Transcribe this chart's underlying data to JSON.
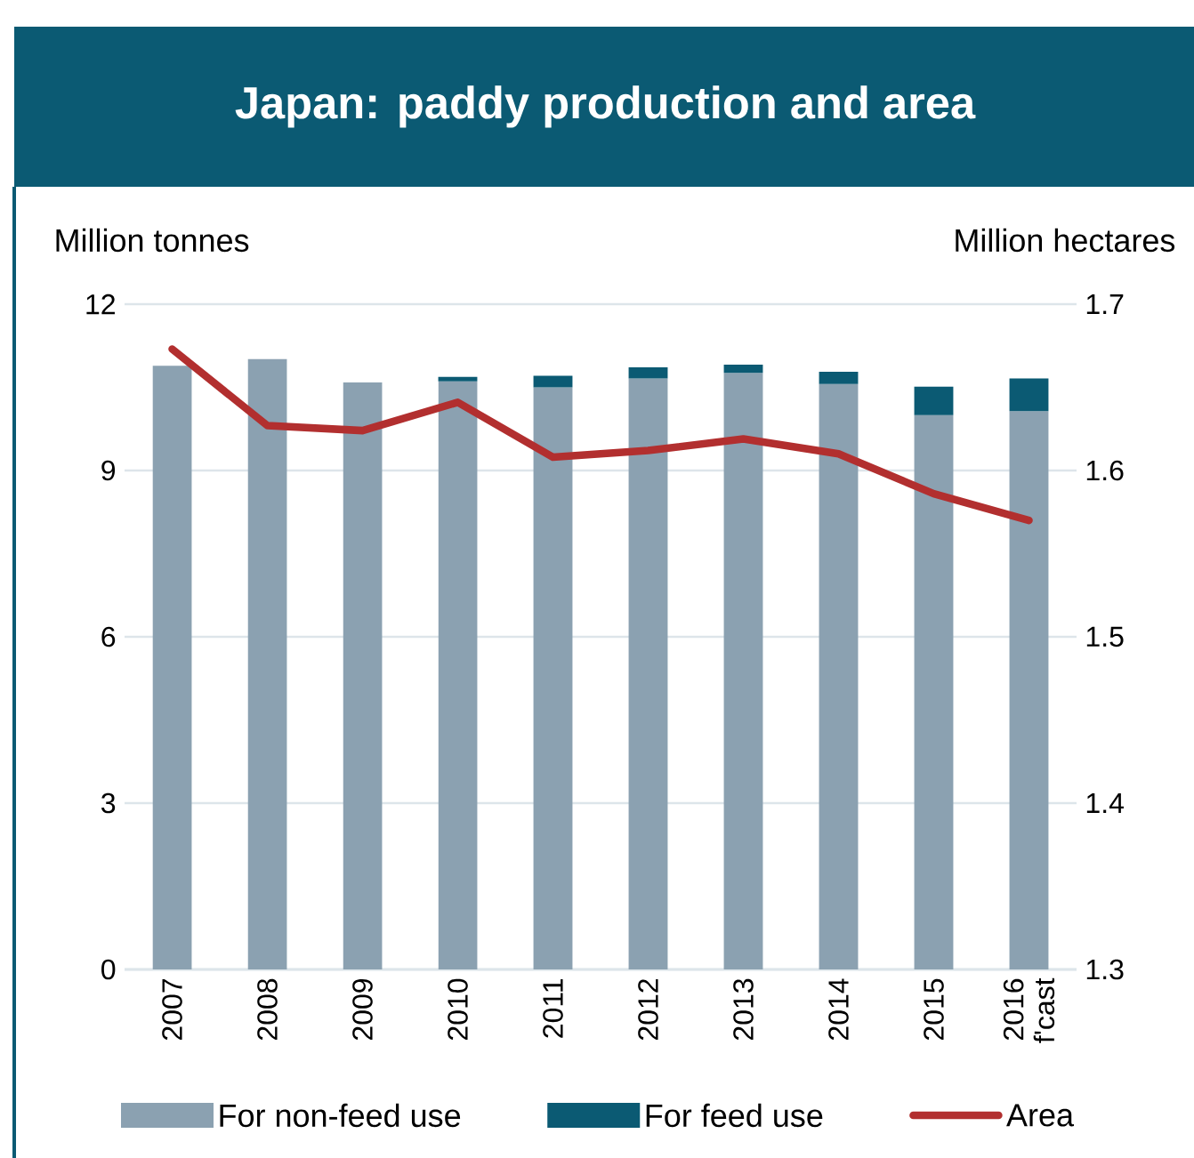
{
  "chart_data": {
    "type": "bar",
    "title": "Japan: paddy production and area",
    "ylabel": "Million tonnes",
    "y2label": "Million hectares",
    "categories": [
      "2007",
      "2008",
      "2009",
      "2010",
      "2011",
      "2012",
      "2013",
      "2014",
      "2015",
      "2016 f'cast"
    ],
    "series": [
      {
        "name": "For non-feed use",
        "color": "#8ba1b1",
        "values": [
          10.89,
          11.01,
          10.59,
          10.61,
          10.5,
          10.66,
          10.76,
          10.56,
          10.0,
          10.07
        ]
      },
      {
        "name": "For feed use",
        "color": "#0b5a73",
        "values": [
          null,
          null,
          null,
          0.08,
          0.21,
          0.2,
          0.15,
          0.22,
          0.51,
          0.59
        ]
      },
      {
        "name": "Area",
        "type": "line",
        "axis": "y2",
        "color": "#b22f2f",
        "values": [
          1.673,
          1.627,
          1.624,
          1.641,
          1.608,
          1.612,
          1.619,
          1.61,
          1.586,
          1.57
        ]
      }
    ],
    "stacked": true,
    "ylim": [
      0,
      12
    ],
    "yticks": [
      0,
      3,
      6,
      9,
      12
    ],
    "y2lim": [
      1.3,
      1.7
    ],
    "y2ticks": [
      1.3,
      1.4,
      1.5,
      1.6,
      1.7
    ],
    "grid": "y",
    "legend": "bottom"
  }
}
